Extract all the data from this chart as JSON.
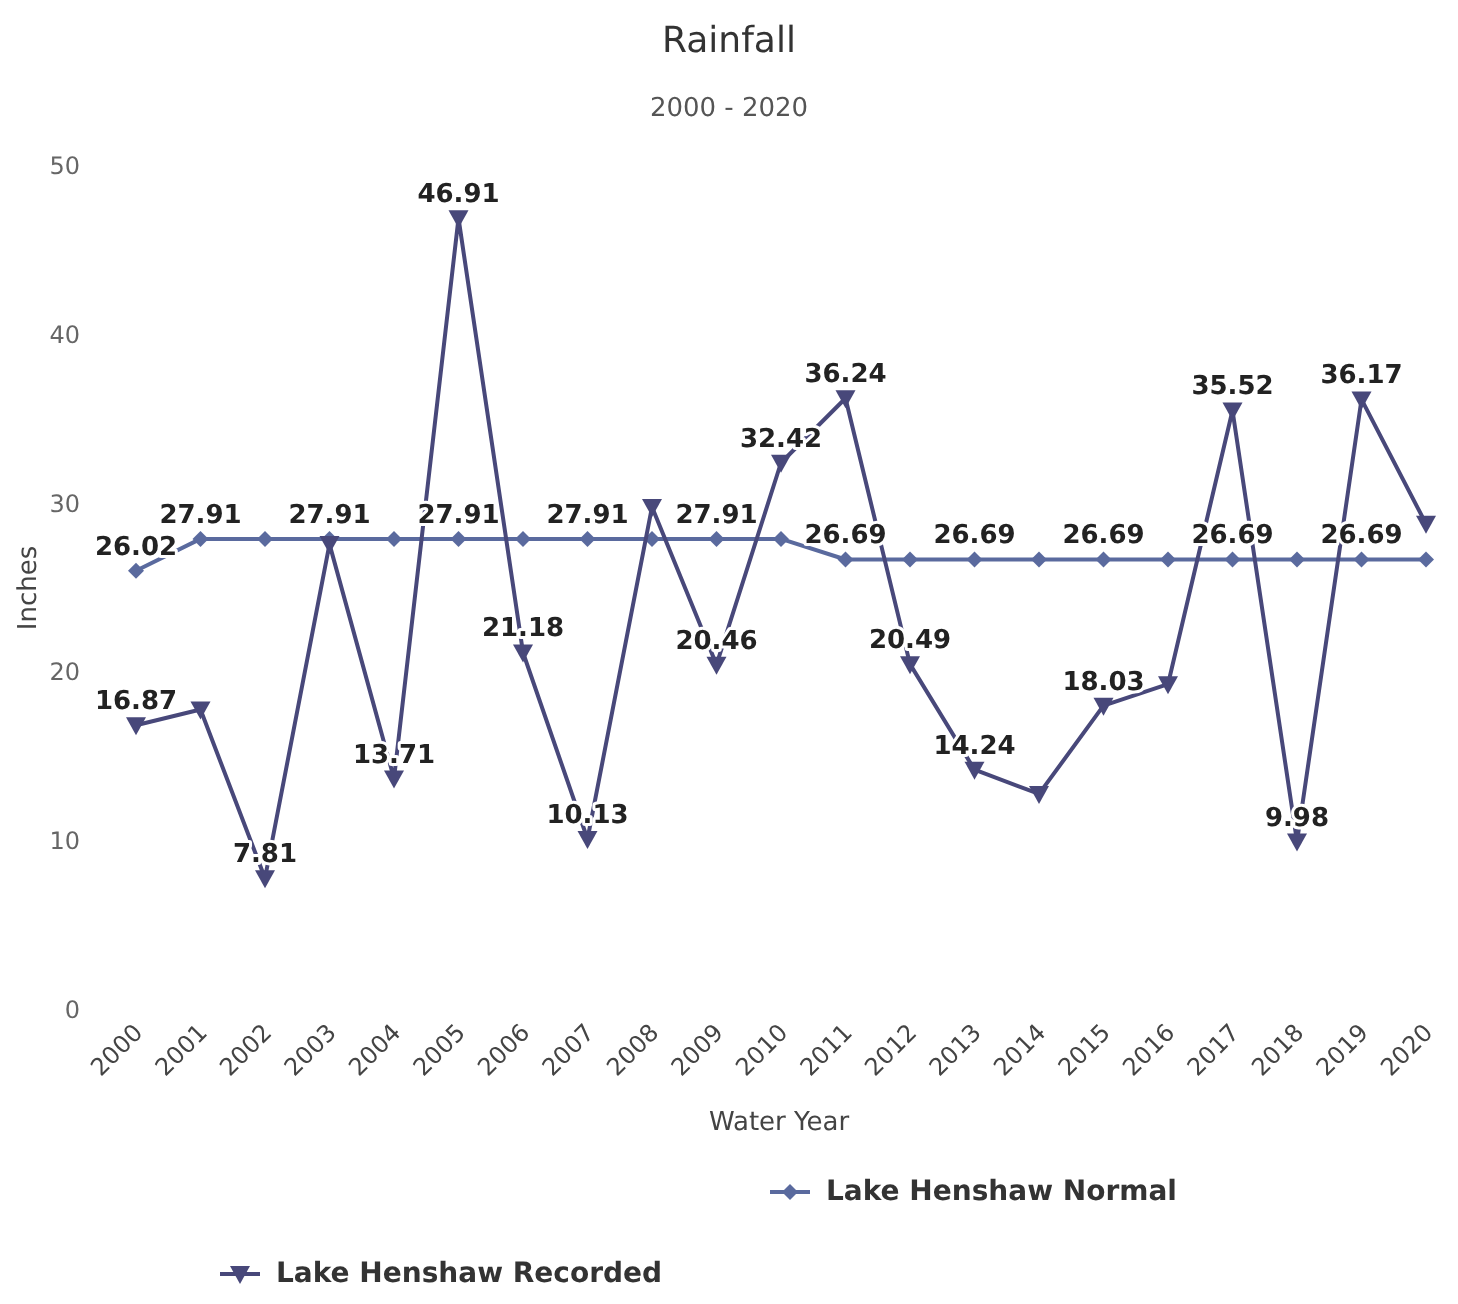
{
  "chart_data": {
    "type": "line",
    "title": "Rainfall",
    "subtitle": "2000 - 2020",
    "xlabel": "Water Year",
    "ylabel": "Inches",
    "categories": [
      "2000",
      "2001",
      "2002",
      "2003",
      "2004",
      "2005",
      "2006",
      "2007",
      "2008",
      "2009",
      "2010",
      "2011",
      "2012",
      "2013",
      "2014",
      "2015",
      "2016",
      "2017",
      "2018",
      "2019",
      "2020"
    ],
    "ylim": [
      0,
      50
    ],
    "yticks": [
      0,
      10,
      20,
      30,
      40,
      50
    ],
    "grid": false,
    "legend": "bottom",
    "series": [
      {
        "name": "Lake Henshaw Normal",
        "color": "#5a6a9e",
        "marker": "diamond",
        "values": [
          26.02,
          27.91,
          27.91,
          27.91,
          27.91,
          27.91,
          27.91,
          27.91,
          27.91,
          27.91,
          27.91,
          26.69,
          26.69,
          26.69,
          26.69,
          26.69,
          26.69,
          26.69,
          26.69,
          26.69,
          26.69
        ],
        "value_labels": [
          "26.02",
          "27.91",
          null,
          "27.91",
          null,
          "27.91",
          null,
          "27.91",
          null,
          "27.91",
          null,
          "26.69",
          null,
          "26.69",
          null,
          "26.69",
          null,
          "26.69",
          null,
          "26.69",
          null
        ]
      },
      {
        "name": "Lake Henshaw Recorded",
        "color": "#48487a",
        "marker": "triangle",
        "values": [
          16.87,
          17.8,
          7.81,
          27.6,
          13.71,
          46.91,
          21.18,
          10.13,
          29.8,
          20.46,
          32.42,
          36.24,
          20.49,
          14.24,
          12.8,
          18.03,
          19.3,
          35.52,
          9.98,
          36.17,
          28.8
        ],
        "value_labels": [
          "16.87",
          null,
          "7.81",
          null,
          "13.71",
          "46.91",
          "21.18",
          "10.13",
          null,
          "20.46",
          "32.42",
          "36.24",
          "20.49",
          "14.24",
          null,
          "18.03",
          null,
          "35.52",
          "9.98",
          "36.17",
          null
        ]
      }
    ]
  }
}
